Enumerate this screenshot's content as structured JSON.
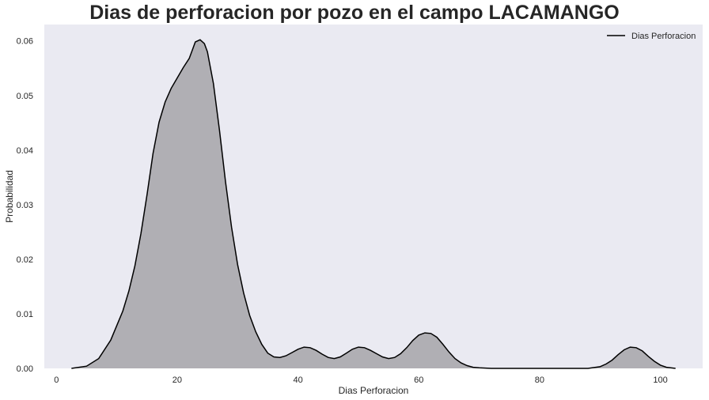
{
  "chart_data": {
    "type": "area",
    "title": "Dias de perforacion por pozo en el campo LACAMANGO",
    "xlabel": "Dias Perforacion",
    "ylabel": "Probabilidad",
    "xlim": [
      -2,
      107
    ],
    "ylim": [
      0,
      0.063
    ],
    "xticks": [
      0,
      20,
      40,
      60,
      80,
      100
    ],
    "yticks": [
      0.0,
      0.01,
      0.02,
      0.03,
      0.04,
      0.05,
      0.06
    ],
    "grid": false,
    "legend": {
      "position": "top-right",
      "entries": [
        "Dias Perforacion"
      ]
    },
    "colors": {
      "background": "#eaeaf2",
      "fill": "#b0afb4",
      "line": "#000000"
    },
    "series": [
      {
        "name": "Dias Perforacion",
        "x": [
          2.5,
          5,
          7,
          9,
          11,
          12,
          13,
          14,
          15,
          16,
          17,
          18,
          19,
          20,
          21,
          22,
          22.5,
          23,
          23.8,
          24.5,
          25,
          26,
          27,
          28,
          29,
          30,
          31,
          32,
          33,
          34,
          35,
          36,
          37,
          38,
          39,
          40,
          41,
          42,
          43,
          44,
          45,
          46,
          47,
          48,
          49,
          50,
          51,
          52,
          53,
          54,
          55,
          56,
          57,
          58,
          59,
          60,
          61,
          62,
          63,
          64,
          65,
          66,
          67,
          68,
          69,
          70,
          72,
          75,
          80,
          85,
          88,
          90,
          91,
          92,
          93,
          94,
          95,
          96,
          97,
          98,
          99,
          100,
          101,
          102.5
        ],
        "y": [
          0.0,
          0.0004,
          0.0018,
          0.0052,
          0.0105,
          0.0142,
          0.0188,
          0.0247,
          0.0318,
          0.0394,
          0.0451,
          0.0488,
          0.0513,
          0.0532,
          0.0551,
          0.0568,
          0.0583,
          0.0598,
          0.0602,
          0.0595,
          0.058,
          0.0522,
          0.0436,
          0.0342,
          0.0259,
          0.019,
          0.0138,
          0.0097,
          0.0067,
          0.0044,
          0.0028,
          0.0021,
          0.002,
          0.0023,
          0.0029,
          0.0035,
          0.0039,
          0.0038,
          0.0033,
          0.0026,
          0.002,
          0.0018,
          0.0021,
          0.0028,
          0.0035,
          0.0039,
          0.0038,
          0.0033,
          0.0027,
          0.0021,
          0.0018,
          0.002,
          0.0027,
          0.0038,
          0.0051,
          0.0061,
          0.0065,
          0.0064,
          0.0057,
          0.0044,
          0.003,
          0.0018,
          0.001,
          0.0005,
          0.0002,
          0.0001,
          0.0,
          0.0,
          0.0,
          0.0,
          0.0,
          0.0003,
          0.0008,
          0.0015,
          0.0025,
          0.0034,
          0.0039,
          0.0038,
          0.0032,
          0.0022,
          0.0013,
          0.0006,
          0.0002,
          0.0
        ]
      }
    ]
  }
}
